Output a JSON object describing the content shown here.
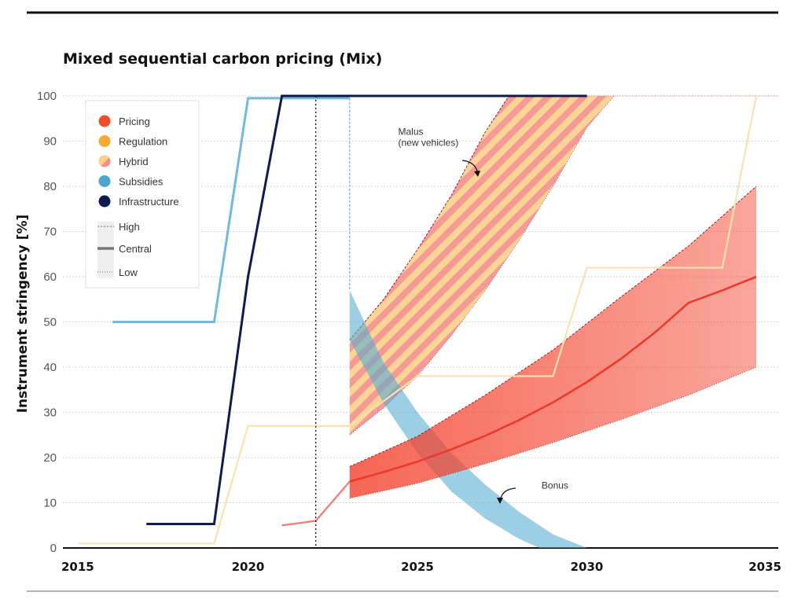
{
  "chart_data": {
    "type": "line",
    "title": "Mixed sequential carbon pricing (Mix)",
    "ylabel": "Instrument stringency [%]",
    "xlabel": "",
    "xlim": [
      2015,
      2035
    ],
    "ylim": [
      0,
      100
    ],
    "x_ticks": [
      "2015",
      "2020",
      "2025",
      "2030",
      "2035"
    ],
    "y_ticks": [
      "0",
      "10",
      "20",
      "30",
      "40",
      "50",
      "60",
      "70",
      "80",
      "90",
      "100"
    ],
    "grid": true,
    "vertical_marker_year": 2022,
    "legend": {
      "placement": "top-left",
      "instruments": [
        {
          "label": "Pricing",
          "color": "#f04e2a",
          "marker": "circle"
        },
        {
          "label": "Regulation",
          "color": "#f7a833",
          "marker": "circle"
        },
        {
          "label": "Hybrid",
          "color": "#f4a585",
          "marker": "striped-circle"
        },
        {
          "label": "Subsidies",
          "color": "#4ba6cf",
          "marker": "circle"
        },
        {
          "label": "Infrastructure",
          "color": "#0f1a4f",
          "marker": "circle"
        }
      ],
      "scenarios": [
        {
          "label": "High",
          "style": "dashed"
        },
        {
          "label": "Central",
          "style": "solid"
        },
        {
          "label": "Low",
          "style": "dotted"
        }
      ]
    },
    "series": [
      {
        "instrument": "Subsidies",
        "scenario": "Central",
        "x": [
          2016,
          2019,
          2020,
          2022.4,
          2023
        ],
        "y": [
          50,
          50,
          99.5,
          99.5,
          99.5
        ]
      },
      {
        "instrument": "Infrastructure",
        "scenario": "Central",
        "x": [
          2017,
          2019,
          2020,
          2021,
          2030
        ],
        "y": [
          5.3,
          5.3,
          60,
          100,
          100
        ]
      },
      {
        "instrument": "Regulation",
        "scenario": "Central",
        "x": [
          2015,
          2019,
          2020,
          2023,
          2025,
          2029,
          2030,
          2034,
          2035
        ],
        "y": [
          1,
          1,
          27,
          27,
          38,
          38,
          62,
          62,
          100
        ]
      },
      {
        "instrument": "Pricing",
        "scenario": "Central",
        "x": [
          2021,
          2022,
          2023,
          2024,
          2025,
          2026,
          2027,
          2028,
          2029,
          2030,
          2031,
          2032,
          2033,
          2034,
          2035
        ],
        "y": [
          5,
          6,
          14.7,
          16.8,
          19.1,
          21.8,
          24.8,
          28.3,
          32.2,
          36.7,
          41.8,
          47.6,
          54.2,
          57.0,
          60
        ]
      },
      {
        "instrument": "Pricing",
        "scenario": "High",
        "x": [
          2023,
          2025,
          2027,
          2029,
          2031,
          2033,
          2035
        ],
        "y": [
          18,
          24.7,
          33.8,
          43.8,
          55.5,
          66.8,
          80
        ]
      },
      {
        "instrument": "Pricing",
        "scenario": "Low",
        "x": [
          2023,
          2025,
          2027,
          2029,
          2031,
          2033,
          2035
        ],
        "y": [
          11,
          14.3,
          18.6,
          23.3,
          28.4,
          33.8,
          40
        ]
      },
      {
        "instrument": "Hybrid",
        "scenario": "High",
        "x": [
          2023,
          2024,
          2025,
          2026,
          2027,
          2027.7
        ],
        "y": [
          46,
          55,
          66,
          78,
          92,
          100
        ]
      },
      {
        "instrument": "Hybrid",
        "scenario": "Low",
        "x": [
          2023,
          2024,
          2025,
          2026,
          2027,
          2028,
          2029,
          2030,
          2030.8
        ],
        "y": [
          25,
          31,
          38,
          47,
          57,
          68,
          80,
          93,
          100
        ]
      },
      {
        "instrument": "Subsidies",
        "scenario": "High",
        "x": [
          2023,
          2024,
          2025,
          2026,
          2027,
          2028,
          2029,
          2030
        ],
        "y": [
          57,
          41,
          30,
          21,
          14,
          8,
          3,
          0
        ]
      },
      {
        "instrument": "Subsidies",
        "scenario": "Low",
        "x": [
          2023,
          2024,
          2025,
          2026,
          2027,
          2028,
          2028.6
        ],
        "y": [
          46,
          32,
          21,
          12.5,
          6.5,
          2,
          0
        ]
      }
    ],
    "annotations": [
      {
        "lines": [
          "Malus",
          "(new vehicles)"
        ],
        "x": 2027.1,
        "y": 90
      },
      {
        "lines": [
          "Bonus"
        ],
        "x": 2028.2,
        "y": 13
      }
    ]
  }
}
